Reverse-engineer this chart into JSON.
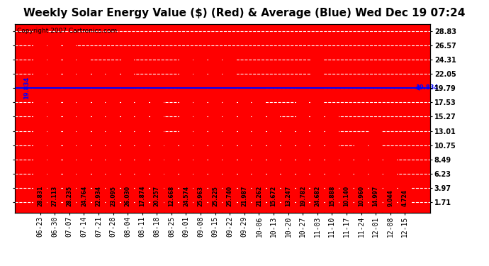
{
  "title": "Weekly Solar Energy Value ($) (Red) & Average (Blue) Wed Dec 19 07:24",
  "copyright": "Copyright 2007 Cartronics.com",
  "categories": [
    "06-23",
    "06-30",
    "07-07",
    "07-14",
    "07-21",
    "07-28",
    "08-04",
    "08-11",
    "08-18",
    "08-25",
    "09-01",
    "09-08",
    "09-15",
    "09-22",
    "09-29",
    "10-06",
    "10-13",
    "10-20",
    "10-27",
    "11-03",
    "11-10",
    "11-17",
    "11-24",
    "12-01",
    "12-08",
    "12-15"
  ],
  "values": [
    28.831,
    27.113,
    28.235,
    24.764,
    22.934,
    23.095,
    26.03,
    17.874,
    20.257,
    12.668,
    24.574,
    25.963,
    25.225,
    25.74,
    21.987,
    21.262,
    15.672,
    13.247,
    19.782,
    24.682,
    15.888,
    10.14,
    10.96,
    14.997,
    9.044,
    4.724
  ],
  "average": 19.834,
  "bar_color": "#FF0000",
  "avg_line_color": "#0000FF",
  "background_color": "#FFFFFF",
  "plot_bg_color": "#FF0000",
  "grid_color": "#FFFFFF",
  "yticks": [
    1.71,
    3.97,
    6.23,
    8.49,
    10.75,
    13.01,
    15.27,
    17.53,
    19.79,
    22.05,
    24.31,
    26.57,
    28.83
  ],
  "ylim": [
    0,
    30.0
  ],
  "title_fontsize": 11,
  "axis_fontsize": 7,
  "copyright_fontsize": 6.5,
  "value_label_fontsize": 5.5
}
